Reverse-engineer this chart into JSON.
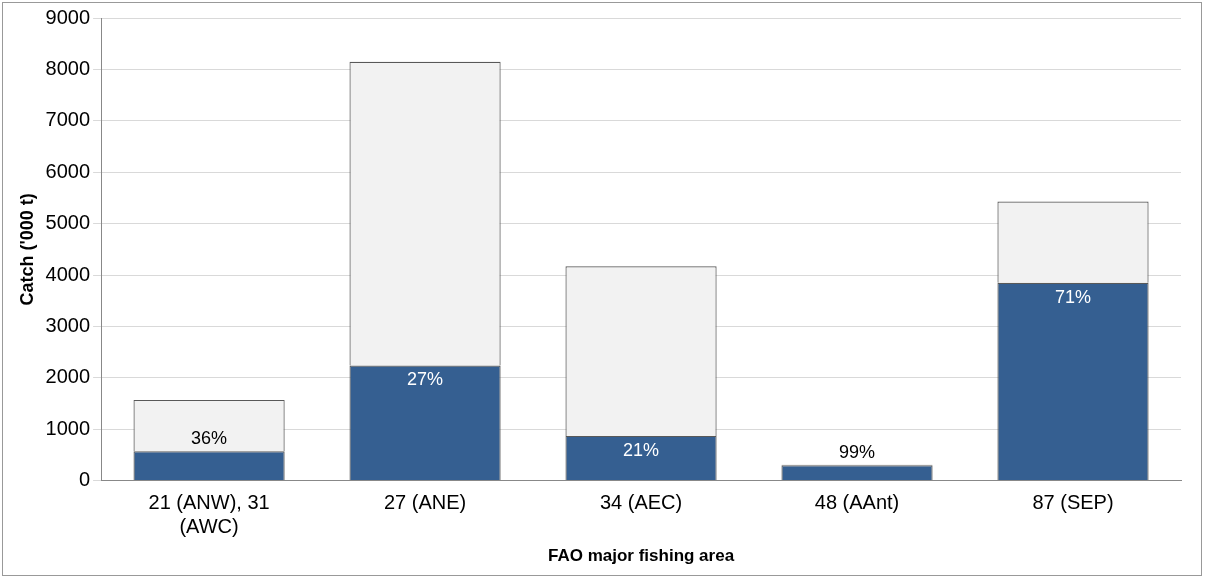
{
  "chart_data": {
    "type": "bar",
    "stacked": true,
    "xlabel": "FAO major fishing area",
    "ylabel": "Catch ('000 t)",
    "categories": [
      "21 (ANW), 31 (AWC)",
      "27 (ANE)",
      "34 (AEC)",
      "48 (AAnt)",
      "87 (SEP)"
    ],
    "series": [
      {
        "color": "#355f91",
        "values": [
          570,
          2240,
          870,
          300,
          3850
        ]
      },
      {
        "color": "#f2f2f2",
        "values": [
          1000,
          5910,
          3300,
          10,
          1580
        ]
      }
    ],
    "annotations": [
      {
        "text": "36%",
        "x": "21 (ANW), 31 (AWC)",
        "y": 570
      },
      {
        "text": "27%",
        "x": "27 (ANE)",
        "y": 2240
      },
      {
        "text": "21%",
        "x": "34 (AEC)",
        "y": 870
      },
      {
        "text": "99%",
        "x": "48 (AAnt)",
        "y": 300
      },
      {
        "text": "71%",
        "x": "87 (SEP)",
        "y": 3850
      }
    ],
    "ylim": [
      0,
      9000
    ],
    "yticks": [
      0,
      1000,
      2000,
      3000,
      4000,
      5000,
      6000,
      7000,
      8000,
      9000
    ],
    "grid": "y",
    "legend": false
  }
}
